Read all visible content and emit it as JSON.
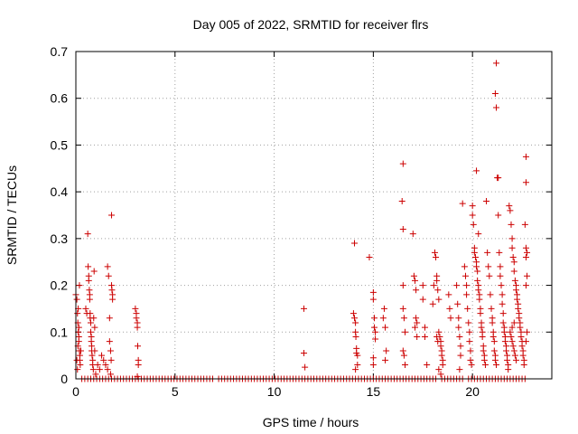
{
  "chart_data": {
    "type": "scatter",
    "title": "Day 005 of 2022, SRMTID for receiver flrs",
    "xlabel": "GPS time / hours",
    "ylabel": "SRMTID / TECUs",
    "xlim": [
      0,
      24
    ],
    "ylim": [
      0,
      0.7
    ],
    "xticks": [
      0,
      5,
      10,
      15,
      20
    ],
    "yticks": [
      0,
      0.1,
      0.2,
      0.3,
      0.4,
      0.5,
      0.6,
      0.7
    ],
    "xtick_labels": [
      "0",
      "5",
      "10",
      "15",
      "20"
    ],
    "ytick_labels": [
      "0",
      "0.1",
      "0.2",
      "0.3",
      "0.4",
      "0.5",
      "0.6",
      "0.7"
    ],
    "grid": true,
    "marker": "+",
    "color": "#cc0000",
    "baseline": {
      "y": 0,
      "x_start": 0.3,
      "x_end": 22.7,
      "step": 0.15,
      "gaps": [
        [
          7.0,
          7.2
        ],
        [
          18.2,
          18.4
        ],
        [
          19.5,
          19.7
        ]
      ]
    },
    "series": [
      {
        "name": "SRMTID",
        "points": [
          [
            0.0,
            0.18
          ],
          [
            0.05,
            0.17
          ],
          [
            0.08,
            0.14
          ],
          [
            0.1,
            0.12
          ],
          [
            0.12,
            0.1
          ],
          [
            0.15,
            0.09
          ],
          [
            0.15,
            0.08
          ],
          [
            0.18,
            0.2
          ],
          [
            0.2,
            0.05
          ],
          [
            0.2,
            0.04
          ],
          [
            0.22,
            0.03
          ],
          [
            0.25,
            0.06
          ],
          [
            0.05,
            0.04
          ],
          [
            0.08,
            0.02
          ],
          [
            0.1,
            0.07
          ],
          [
            0.12,
            0.15
          ],
          [
            0.15,
            0.11
          ],
          [
            0.18,
            0.06
          ],
          [
            0.5,
            0.15
          ],
          [
            0.55,
            0.14
          ],
          [
            0.6,
            0.31
          ],
          [
            0.62,
            0.24
          ],
          [
            0.65,
            0.22
          ],
          [
            0.65,
            0.21
          ],
          [
            0.68,
            0.19
          ],
          [
            0.7,
            0.18
          ],
          [
            0.7,
            0.17
          ],
          [
            0.72,
            0.14
          ],
          [
            0.72,
            0.13
          ],
          [
            0.75,
            0.12
          ],
          [
            0.75,
            0.1
          ],
          [
            0.78,
            0.09
          ],
          [
            0.78,
            0.08
          ],
          [
            0.8,
            0.07
          ],
          [
            0.8,
            0.06
          ],
          [
            0.82,
            0.05
          ],
          [
            0.85,
            0.04
          ],
          [
            0.85,
            0.03
          ],
          [
            0.88,
            0.02
          ],
          [
            0.9,
            0.13
          ],
          [
            0.92,
            0.23
          ],
          [
            0.95,
            0.11
          ],
          [
            0.95,
            0.06
          ],
          [
            1.0,
            0.01
          ],
          [
            1.1,
            0.03
          ],
          [
            1.2,
            0.02
          ],
          [
            1.3,
            0.05
          ],
          [
            1.4,
            0.04
          ],
          [
            1.5,
            0.03
          ],
          [
            1.6,
            0.02
          ],
          [
            1.6,
            0.24
          ],
          [
            1.65,
            0.22
          ],
          [
            1.7,
            0.13
          ],
          [
            1.7,
            0.08
          ],
          [
            1.75,
            0.06
          ],
          [
            1.78,
            0.04
          ],
          [
            1.8,
            0.35
          ],
          [
            1.8,
            0.2
          ],
          [
            1.82,
            0.19
          ],
          [
            1.85,
            0.18
          ],
          [
            1.85,
            0.17
          ],
          [
            1.75,
            0.01
          ],
          [
            3.0,
            0.15
          ],
          [
            3.05,
            0.14
          ],
          [
            3.05,
            0.13
          ],
          [
            3.1,
            0.12
          ],
          [
            3.1,
            0.11
          ],
          [
            3.12,
            0.07
          ],
          [
            3.15,
            0.04
          ],
          [
            3.15,
            0.03
          ],
          [
            3.1,
            0.005
          ],
          [
            11.5,
            0.15
          ],
          [
            11.5,
            0.055
          ],
          [
            11.55,
            0.025
          ],
          [
            14.05,
            0.29
          ],
          [
            14.0,
            0.14
          ],
          [
            14.05,
            0.13
          ],
          [
            14.1,
            0.12
          ],
          [
            14.1,
            0.1
          ],
          [
            14.12,
            0.09
          ],
          [
            14.15,
            0.065
          ],
          [
            14.15,
            0.055
          ],
          [
            14.2,
            0.05
          ],
          [
            14.2,
            0.03
          ],
          [
            14.1,
            0.02
          ],
          [
            14.8,
            0.26
          ],
          [
            15.0,
            0.185
          ],
          [
            15.0,
            0.17
          ],
          [
            15.05,
            0.13
          ],
          [
            15.05,
            0.11
          ],
          [
            15.1,
            0.1
          ],
          [
            15.1,
            0.085
          ],
          [
            15.0,
            0.045
          ],
          [
            15.0,
            0.03
          ],
          [
            15.55,
            0.15
          ],
          [
            15.5,
            0.13
          ],
          [
            15.6,
            0.11
          ],
          [
            15.65,
            0.06
          ],
          [
            15.6,
            0.04
          ],
          [
            16.5,
            0.46
          ],
          [
            16.45,
            0.38
          ],
          [
            16.5,
            0.32
          ],
          [
            16.5,
            0.2
          ],
          [
            16.5,
            0.15
          ],
          [
            16.55,
            0.13
          ],
          [
            16.6,
            0.1
          ],
          [
            16.5,
            0.06
          ],
          [
            16.55,
            0.05
          ],
          [
            16.6,
            0.03
          ],
          [
            17.0,
            0.31
          ],
          [
            17.05,
            0.22
          ],
          [
            17.1,
            0.21
          ],
          [
            17.15,
            0.19
          ],
          [
            17.15,
            0.13
          ],
          [
            17.2,
            0.12
          ],
          [
            17.1,
            0.11
          ],
          [
            17.2,
            0.09
          ],
          [
            17.5,
            0.2
          ],
          [
            17.5,
            0.17
          ],
          [
            17.6,
            0.11
          ],
          [
            17.6,
            0.09
          ],
          [
            17.7,
            0.03
          ],
          [
            18.0,
            0.16
          ],
          [
            18.05,
            0.2
          ],
          [
            18.1,
            0.27
          ],
          [
            18.15,
            0.26
          ],
          [
            18.2,
            0.22
          ],
          [
            18.2,
            0.21
          ],
          [
            18.25,
            0.19
          ],
          [
            18.3,
            0.17
          ],
          [
            18.3,
            0.1
          ],
          [
            18.35,
            0.09
          ],
          [
            18.4,
            0.08
          ],
          [
            18.4,
            0.07
          ],
          [
            18.45,
            0.06
          ],
          [
            18.45,
            0.05
          ],
          [
            18.5,
            0.04
          ],
          [
            18.5,
            0.03
          ],
          [
            18.3,
            0.02
          ],
          [
            18.4,
            0.01
          ],
          [
            18.2,
            0.09
          ],
          [
            18.25,
            0.08
          ],
          [
            18.8,
            0.18
          ],
          [
            18.85,
            0.15
          ],
          [
            18.9,
            0.13
          ],
          [
            19.2,
            0.2
          ],
          [
            19.25,
            0.16
          ],
          [
            19.3,
            0.13
          ],
          [
            19.3,
            0.11
          ],
          [
            19.35,
            0.09
          ],
          [
            19.4,
            0.07
          ],
          [
            19.4,
            0.05
          ],
          [
            19.35,
            0.02
          ],
          [
            19.5,
            0.375
          ],
          [
            19.6,
            0.24
          ],
          [
            19.65,
            0.22
          ],
          [
            19.7,
            0.2
          ],
          [
            19.7,
            0.18
          ],
          [
            19.75,
            0.15
          ],
          [
            19.8,
            0.12
          ],
          [
            19.85,
            0.1
          ],
          [
            19.85,
            0.08
          ],
          [
            19.9,
            0.06
          ],
          [
            19.9,
            0.04
          ],
          [
            19.95,
            0.03
          ],
          [
            20.0,
            0.37
          ],
          [
            20.0,
            0.35
          ],
          [
            20.05,
            0.33
          ],
          [
            20.1,
            0.28
          ],
          [
            20.1,
            0.27
          ],
          [
            20.15,
            0.26
          ],
          [
            20.2,
            0.25
          ],
          [
            20.2,
            0.24
          ],
          [
            20.25,
            0.23
          ],
          [
            20.25,
            0.21
          ],
          [
            20.3,
            0.2
          ],
          [
            20.3,
            0.19
          ],
          [
            20.35,
            0.18
          ],
          [
            20.35,
            0.17
          ],
          [
            20.4,
            0.15
          ],
          [
            20.4,
            0.14
          ],
          [
            20.45,
            0.12
          ],
          [
            20.45,
            0.11
          ],
          [
            20.5,
            0.1
          ],
          [
            20.5,
            0.09
          ],
          [
            20.55,
            0.07
          ],
          [
            20.55,
            0.06
          ],
          [
            20.6,
            0.05
          ],
          [
            20.6,
            0.04
          ],
          [
            20.65,
            0.03
          ],
          [
            20.2,
            0.445
          ],
          [
            20.3,
            0.31
          ],
          [
            20.7,
            0.38
          ],
          [
            20.75,
            0.27
          ],
          [
            20.8,
            0.24
          ],
          [
            20.85,
            0.22
          ],
          [
            20.9,
            0.18
          ],
          [
            20.95,
            0.15
          ],
          [
            21.0,
            0.13
          ],
          [
            21.0,
            0.12
          ],
          [
            21.05,
            0.1
          ],
          [
            21.05,
            0.09
          ],
          [
            21.1,
            0.08
          ],
          [
            21.1,
            0.06
          ],
          [
            21.15,
            0.05
          ],
          [
            21.15,
            0.04
          ],
          [
            21.2,
            0.03
          ],
          [
            21.2,
            0.675
          ],
          [
            21.15,
            0.61
          ],
          [
            21.2,
            0.58
          ],
          [
            21.25,
            0.43
          ],
          [
            21.3,
            0.43
          ],
          [
            21.3,
            0.35
          ],
          [
            21.35,
            0.27
          ],
          [
            21.4,
            0.24
          ],
          [
            21.4,
            0.22
          ],
          [
            21.45,
            0.2
          ],
          [
            21.5,
            0.18
          ],
          [
            21.5,
            0.16
          ],
          [
            21.55,
            0.14
          ],
          [
            21.55,
            0.12
          ],
          [
            21.6,
            0.11
          ],
          [
            21.6,
            0.1
          ],
          [
            21.65,
            0.09
          ],
          [
            21.65,
            0.08
          ],
          [
            21.7,
            0.07
          ],
          [
            21.7,
            0.06
          ],
          [
            21.75,
            0.05
          ],
          [
            21.75,
            0.04
          ],
          [
            21.8,
            0.03
          ],
          [
            21.8,
            0.02
          ],
          [
            21.85,
            0.37
          ],
          [
            21.9,
            0.36
          ],
          [
            21.95,
            0.33
          ],
          [
            22.0,
            0.3
          ],
          [
            22.0,
            0.28
          ],
          [
            22.05,
            0.26
          ],
          [
            22.1,
            0.25
          ],
          [
            22.1,
            0.23
          ],
          [
            22.15,
            0.21
          ],
          [
            22.2,
            0.2
          ],
          [
            22.2,
            0.19
          ],
          [
            22.25,
            0.18
          ],
          [
            22.25,
            0.17
          ],
          [
            22.3,
            0.16
          ],
          [
            22.3,
            0.15
          ],
          [
            22.35,
            0.14
          ],
          [
            22.35,
            0.13
          ],
          [
            22.4,
            0.12
          ],
          [
            22.4,
            0.11
          ],
          [
            22.45,
            0.1
          ],
          [
            22.45,
            0.09
          ],
          [
            22.5,
            0.08
          ],
          [
            22.5,
            0.07
          ],
          [
            22.55,
            0.06
          ],
          [
            22.55,
            0.05
          ],
          [
            22.6,
            0.04
          ],
          [
            22.6,
            0.03
          ],
          [
            21.9,
            0.1
          ],
          [
            21.95,
            0.09
          ],
          [
            22.0,
            0.08
          ],
          [
            22.05,
            0.07
          ],
          [
            22.1,
            0.06
          ],
          [
            22.15,
            0.05
          ],
          [
            22.2,
            0.04
          ],
          [
            22.0,
            0.11
          ],
          [
            22.1,
            0.12
          ],
          [
            22.7,
            0.475
          ],
          [
            22.7,
            0.42
          ],
          [
            22.65,
            0.33
          ],
          [
            22.7,
            0.28
          ],
          [
            22.75,
            0.27
          ],
          [
            22.7,
            0.26
          ],
          [
            22.75,
            0.22
          ],
          [
            22.7,
            0.2
          ],
          [
            22.75,
            0.1
          ],
          [
            22.7,
            0.08
          ]
        ]
      }
    ]
  }
}
